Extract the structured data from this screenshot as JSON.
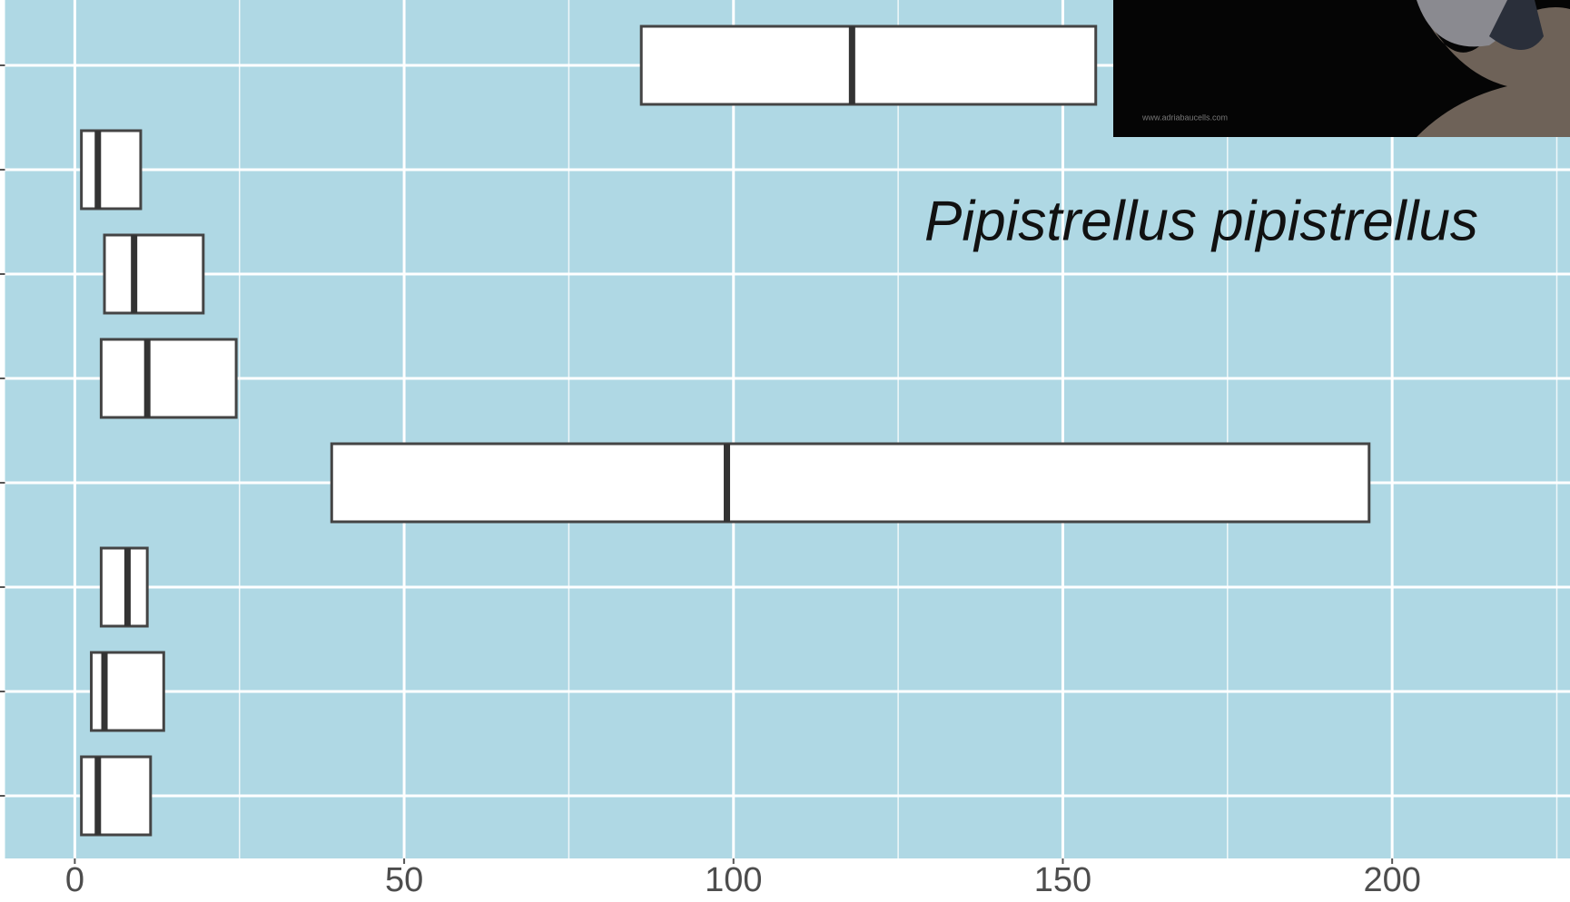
{
  "chart_data": {
    "type": "box",
    "annotation": "Pipistrellus pipistrellus",
    "image_credit": "www.adriabaucells.com",
    "categories": [
      null,
      null,
      null,
      null,
      null,
      null,
      null,
      null
    ],
    "q1": [
      86,
      1,
      4.5,
      4,
      39,
      4,
      2.5,
      1
    ],
    "median": [
      118,
      3.5,
      9,
      11,
      99,
      8,
      4.5,
      3.5
    ],
    "q3": [
      155,
      10,
      19.5,
      24.5,
      196.5,
      11,
      13.5,
      11.5
    ],
    "color": "#ffffff",
    "background": "#afd8e4",
    "xlim": [
      -10.6,
      227
    ],
    "xticks": [
      0,
      50,
      100,
      150,
      200
    ],
    "grid": true,
    "minor_grid": true
  }
}
